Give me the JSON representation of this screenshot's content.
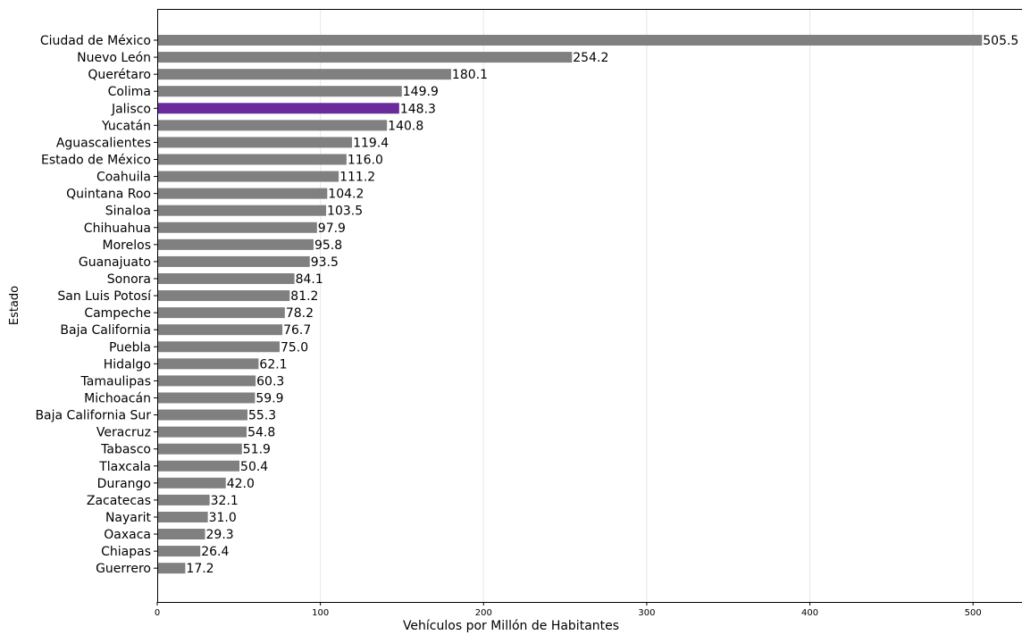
{
  "chart_data": {
    "type": "bar",
    "orientation": "horizontal",
    "xlabel": "Vehículos por Millón de Habitantes",
    "ylabel": "Estado",
    "xlim": [
      0,
      530
    ],
    "xticks": [
      0,
      100,
      200,
      300,
      400,
      500
    ],
    "grid": "vertical",
    "colors": {
      "default": "#808080",
      "highlight": "#6a2c9a"
    },
    "highlight": "Jalisco",
    "categories": [
      "Ciudad de México",
      "Nuevo León",
      "Querétaro",
      "Colima",
      "Jalisco",
      "Yucatán",
      "Aguascalientes",
      "Estado de México",
      "Coahuila",
      "Quintana Roo",
      "Sinaloa",
      "Chihuahua",
      "Morelos",
      "Guanajuato",
      "Sonora",
      "San Luis Potosí",
      "Campeche",
      "Baja California",
      "Puebla",
      "Hidalgo",
      "Tamaulipas",
      "Michoacán",
      "Baja California Sur",
      "Veracruz",
      "Tabasco",
      "Tlaxcala",
      "Durango",
      "Zacatecas",
      "Nayarit",
      "Oaxaca",
      "Chiapas",
      "Guerrero"
    ],
    "values": [
      505.5,
      254.2,
      180.1,
      149.9,
      148.3,
      140.8,
      119.4,
      116.0,
      111.2,
      104.2,
      103.5,
      97.9,
      95.8,
      93.5,
      84.1,
      81.2,
      78.2,
      76.7,
      75.0,
      62.1,
      60.3,
      59.9,
      55.3,
      54.8,
      51.9,
      50.4,
      42.0,
      32.1,
      31.0,
      29.3,
      26.4,
      17.2
    ],
    "value_labels": [
      "505.5",
      "254.2",
      "180.1",
      "149.9",
      "148.3",
      "140.8",
      "119.4",
      "116.0",
      "111.2",
      "104.2",
      "103.5",
      "97.9",
      "95.8",
      "93.5",
      "84.1",
      "81.2",
      "78.2",
      "76.7",
      "75.0",
      "62.1",
      "60.3",
      "59.9",
      "55.3",
      "54.8",
      "51.9",
      "50.4",
      "42.0",
      "32.1",
      "31.0",
      "29.3",
      "26.4",
      "17.2"
    ]
  }
}
